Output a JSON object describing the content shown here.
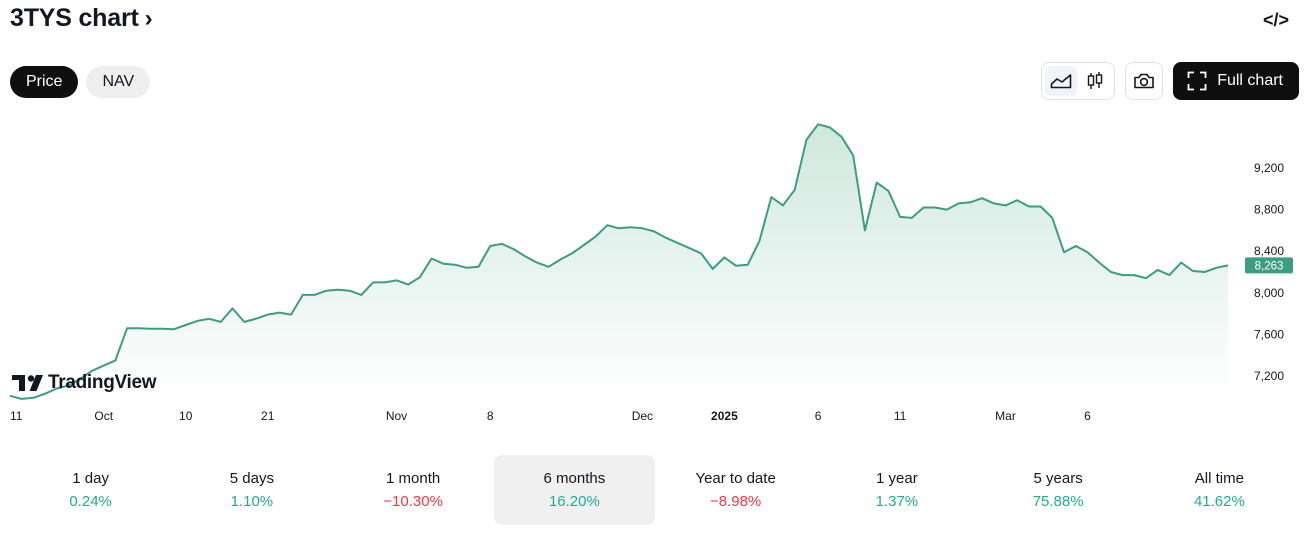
{
  "header": {
    "title": "3TYS chart",
    "chevron": "›",
    "embed_label": "</>"
  },
  "tabs": [
    {
      "label": "Price",
      "active": true
    },
    {
      "label": "NAV",
      "active": false
    }
  ],
  "toolbar": {
    "chart_styles": [
      "line-chart-icon",
      "candles-icon"
    ],
    "selected_style": "line",
    "screenshot_icon": "camera-icon",
    "full_chart_label": "Full chart"
  },
  "branding": {
    "logo_text": "TradingView"
  },
  "colors": {
    "line": "#3c9d82",
    "area_top": "#cfe8de",
    "area_bottom": "#ffffff",
    "badge": "#3c9d82",
    "positive": "#22ab94",
    "negative": "#f23645"
  },
  "chart_data": {
    "type": "area",
    "title": "",
    "xlabel": "",
    "ylabel": "",
    "y_ticks": [
      "9,200",
      "8,800",
      "8,400",
      "8,000",
      "7,600",
      "7,200"
    ],
    "y_tick_values": [
      9200,
      8800,
      8400,
      8000,
      7600,
      7200
    ],
    "ylim": [
      7000,
      9600
    ],
    "x_tick_labels": [
      {
        "label": "11",
        "bold": false,
        "i": 0
      },
      {
        "label": "Oct",
        "bold": false,
        "i": 8
      },
      {
        "label": "10",
        "bold": false,
        "i": 15
      },
      {
        "label": "21",
        "bold": false,
        "i": 22
      },
      {
        "label": "Nov",
        "bold": false,
        "i": 33
      },
      {
        "label": "8",
        "bold": false,
        "i": 41
      },
      {
        "label": "Dec",
        "bold": false,
        "i": 54
      },
      {
        "label": "2025",
        "bold": true,
        "i": 61
      },
      {
        "label": "6",
        "bold": false,
        "i": 69
      },
      {
        "label": "11",
        "bold": false,
        "i": 76
      },
      {
        "label": "Mar",
        "bold": false,
        "i": 85
      },
      {
        "label": "6",
        "bold": false,
        "i": 92
      }
    ],
    "last_value_label": "8,263",
    "last_value": 8263,
    "values": [
      7010,
      6980,
      6990,
      7030,
      7080,
      7110,
      7170,
      7250,
      7300,
      7350,
      7660,
      7660,
      7655,
      7655,
      7650,
      7690,
      7730,
      7750,
      7720,
      7850,
      7720,
      7750,
      7790,
      7810,
      7790,
      7980,
      7980,
      8020,
      8030,
      8020,
      7980,
      8100,
      8100,
      8120,
      8080,
      8150,
      8330,
      8280,
      8270,
      8240,
      8250,
      8450,
      8470,
      8420,
      8350,
      8290,
      8250,
      8320,
      8380,
      8460,
      8540,
      8650,
      8620,
      8630,
      8620,
      8590,
      8530,
      8480,
      8430,
      8380,
      8230,
      8340,
      8260,
      8270,
      8500,
      8920,
      8840,
      8990,
      9470,
      9620,
      9590,
      9500,
      9320,
      8600,
      9060,
      8980,
      8730,
      8720,
      8820,
      8820,
      8800,
      8860,
      8870,
      8910,
      8860,
      8840,
      8890,
      8830,
      8830,
      8720,
      8390,
      8450,
      8390,
      8290,
      8200,
      8170,
      8170,
      8140,
      8220,
      8170,
      8290,
      8210,
      8200,
      8240,
      8263
    ]
  },
  "periods": [
    {
      "label": "1 day",
      "value": "0.24%",
      "trend": "pos",
      "selected": false
    },
    {
      "label": "5 days",
      "value": "1.10%",
      "trend": "pos",
      "selected": false
    },
    {
      "label": "1 month",
      "value": "−10.30%",
      "trend": "neg",
      "selected": false
    },
    {
      "label": "6 months",
      "value": "16.20%",
      "trend": "pos",
      "selected": true
    },
    {
      "label": "Year to date",
      "value": "−8.98%",
      "trend": "neg",
      "selected": false
    },
    {
      "label": "1 year",
      "value": "1.37%",
      "trend": "pos",
      "selected": false
    },
    {
      "label": "5 years",
      "value": "75.88%",
      "trend": "pos",
      "selected": false
    },
    {
      "label": "All time",
      "value": "41.62%",
      "trend": "pos",
      "selected": false
    }
  ]
}
